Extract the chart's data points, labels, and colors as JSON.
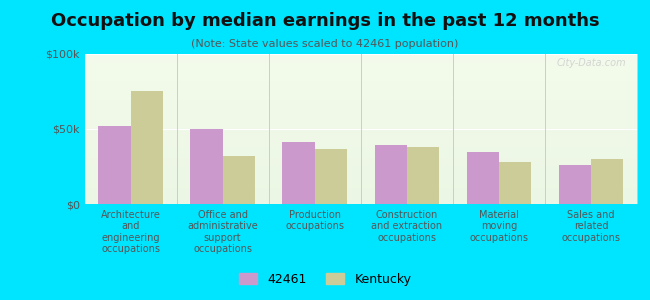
{
  "title": "Occupation by median earnings in the past 12 months",
  "subtitle": "(Note: State values scaled to 42461 population)",
  "categories": [
    "Architecture\nand\nengineering\noccupations",
    "Office and\nadministrative\nsupport\noccupations",
    "Production\noccupations",
    "Construction\nand extraction\noccupations",
    "Material\nmoving\noccupations",
    "Sales and\nrelated\noccupations"
  ],
  "values_42461": [
    52000,
    50000,
    41000,
    39000,
    35000,
    26000
  ],
  "values_kentucky": [
    75000,
    32000,
    37000,
    38000,
    28000,
    30000
  ],
  "color_42461": "#cc99cc",
  "color_kentucky": "#cccc99",
  "background_outer": "#00e5ff",
  "background_plot": "#f0f8e8",
  "ylim": [
    0,
    100000
  ],
  "yticks": [
    0,
    50000,
    100000
  ],
  "ytick_labels": [
    "$0",
    "$50k",
    "$100k"
  ],
  "legend_labels": [
    "42461",
    "Kentucky"
  ],
  "watermark": "City-Data.com"
}
